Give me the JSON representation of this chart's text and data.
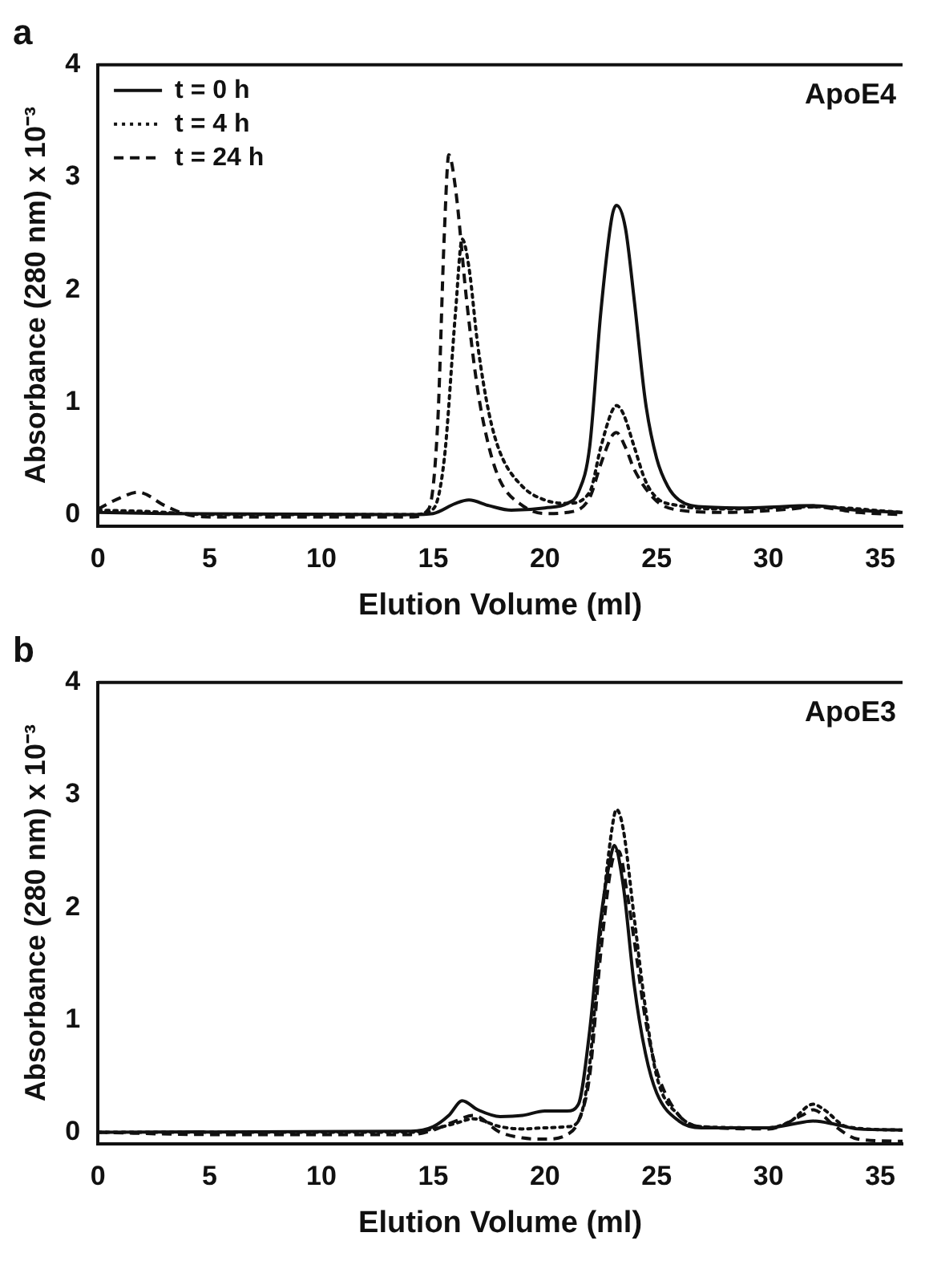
{
  "chart_data": [
    {
      "type": "line",
      "title": "a",
      "xlabel": "Elution Volume (ml)",
      "ylabel": "Absorbance (280 nm) x 10⁻³",
      "annotations": [
        "ApoE4"
      ],
      "xlim": [
        0,
        36
      ],
      "xticks": [
        0,
        5,
        10,
        15,
        20,
        25,
        30,
        35
      ],
      "ylim": [
        -0.1,
        4
      ],
      "yticks": [
        0,
        1,
        2,
        3,
        4
      ],
      "legend": "top left",
      "grid": false,
      "marker": "none",
      "series": [
        {
          "name": "t = 0 h",
          "color": "#111111",
          "line_style": "solid",
          "x": [
            0,
            3,
            14,
            15,
            16,
            16.6,
            17.5,
            18.5,
            20,
            21,
            21.5,
            22,
            22.5,
            23,
            23.2,
            23.6,
            24,
            24.5,
            25,
            25.5,
            26,
            27,
            29,
            32,
            34,
            36
          ],
          "values": [
            0.02,
            0.01,
            0,
            0.01,
            0.1,
            0.13,
            0.08,
            0.04,
            0.06,
            0.1,
            0.2,
            0.6,
            1.8,
            2.65,
            2.75,
            2.55,
            1.9,
            1,
            0.5,
            0.25,
            0.13,
            0.07,
            0.06,
            0.08,
            0.04,
            0.02
          ]
        },
        {
          "name": "t = 4 h",
          "color": "#111111",
          "line_style": "dotted",
          "x": [
            0,
            2,
            3,
            5,
            14,
            15,
            15.5,
            16,
            16.3,
            16.6,
            17,
            17.5,
            18,
            19,
            20,
            21,
            22,
            22.5,
            23,
            23.2,
            23.5,
            24,
            24.5,
            25,
            26,
            28,
            32,
            36
          ],
          "values": [
            0.04,
            0.03,
            0.02,
            0,
            0,
            0.05,
            0.5,
            1.8,
            2.45,
            2.2,
            1.5,
            0.9,
            0.55,
            0.25,
            0.13,
            0.1,
            0.2,
            0.6,
            0.92,
            0.97,
            0.9,
            0.6,
            0.3,
            0.15,
            0.08,
            0.05,
            0.07,
            0.02
          ]
        },
        {
          "name": "t = 24 h",
          "color": "#111111",
          "line_style": "dashed",
          "x": [
            0,
            1,
            1.8,
            3,
            4,
            5,
            14,
            14.8,
            15.2,
            15.5,
            15.7,
            16,
            16.5,
            17,
            17.5,
            18,
            19,
            20,
            21,
            22,
            22.5,
            23,
            23.2,
            23.6,
            24,
            25,
            26,
            28,
            31,
            32,
            34,
            36
          ],
          "values": [
            0.05,
            0.15,
            0.2,
            0.08,
            0,
            -0.02,
            -0.02,
            0.05,
            0.8,
            2.5,
            3.2,
            2.9,
            1.9,
            1.1,
            0.6,
            0.3,
            0.08,
            0.01,
            0.02,
            0.15,
            0.45,
            0.7,
            0.73,
            0.6,
            0.4,
            0.12,
            0.04,
            0.02,
            0.05,
            0.07,
            0.02,
            0
          ]
        }
      ]
    },
    {
      "type": "line",
      "title": "b",
      "xlabel": "Elution Volume (ml)",
      "ylabel": "Absorbance (280 nm) x 10⁻³",
      "annotations": [
        "ApoE3"
      ],
      "xlim": [
        0,
        36
      ],
      "xticks": [
        0,
        5,
        10,
        15,
        20,
        25,
        30,
        35
      ],
      "ylim": [
        -0.1,
        4
      ],
      "yticks": [
        0,
        1,
        2,
        3,
        4
      ],
      "legend": false,
      "grid": false,
      "marker": "none",
      "series": [
        {
          "color": "#111111",
          "line_style": "solid",
          "x": [
            0,
            14,
            15,
            15.7,
            16.3,
            17,
            18,
            19,
            20,
            21,
            21.5,
            22,
            22.5,
            23,
            23.1,
            23.5,
            24,
            24.5,
            25,
            26,
            27,
            30,
            31,
            32,
            33,
            34,
            36
          ],
          "values": [
            0,
            0.01,
            0.05,
            0.15,
            0.28,
            0.2,
            0.14,
            0.15,
            0.19,
            0.19,
            0.25,
            0.9,
            1.9,
            2.5,
            2.55,
            2.2,
            1.3,
            0.7,
            0.35,
            0.1,
            0.04,
            0.04,
            0.07,
            0.1,
            0.07,
            0.03,
            0.02
          ]
        },
        {
          "color": "#111111",
          "line_style": "dotted",
          "x": [
            0,
            14,
            15,
            16,
            16.8,
            18,
            19,
            20,
            21,
            21.5,
            22,
            22.5,
            23,
            23.2,
            23.5,
            24,
            24.5,
            25,
            26,
            27,
            30,
            31,
            32,
            32.5,
            33.5,
            36
          ],
          "values": [
            0,
            0,
            0.03,
            0.08,
            0.12,
            0.05,
            0.03,
            0.04,
            0.05,
            0.1,
            0.6,
            1.8,
            2.7,
            2.87,
            2.7,
            1.9,
            1.1,
            0.5,
            0.15,
            0.05,
            0.04,
            0.1,
            0.25,
            0.2,
            0.05,
            0.02
          ]
        },
        {
          "color": "#111111",
          "line_style": "dashed",
          "x": [
            0,
            5,
            14,
            15,
            16,
            16.8,
            18,
            19,
            20,
            21,
            21.5,
            22,
            22.5,
            23,
            23.3,
            23.7,
            24,
            24.5,
            25,
            26,
            27,
            30,
            31.5,
            32,
            33,
            34,
            36
          ],
          "values": [
            0,
            -0.02,
            -0.02,
            0.02,
            0.1,
            0.15,
            0,
            -0.05,
            -0.06,
            -0.02,
            0.1,
            0.5,
            1.6,
            2.4,
            2.5,
            2.1,
            1.7,
            1,
            0.55,
            0.15,
            0.05,
            0.03,
            0.15,
            0.2,
            0.05,
            -0.06,
            -0.08
          ]
        }
      ]
    }
  ]
}
